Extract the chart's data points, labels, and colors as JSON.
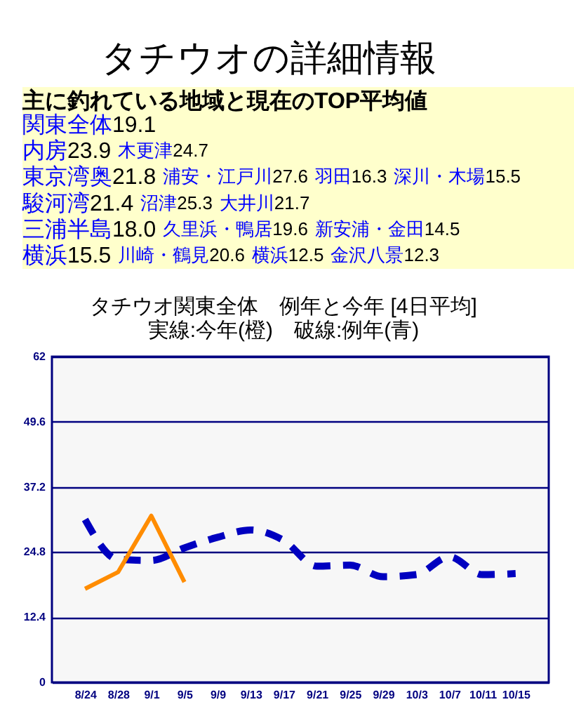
{
  "chart_data": [
    {
      "type": "other",
      "title": "タチウオの詳細情報",
      "subtitle": "主に釣れている地域と現在のTOP平均値",
      "categories": [
        "関東全体"
      ],
      "values": [
        19.1
      ],
      "data_labels": true
    },
    {
      "type": "other",
      "categories": [
        "内房",
        "木更津"
      ],
      "values": [
        23.9,
        24.7
      ],
      "data_labels": true
    },
    {
      "type": "other",
      "categories": [
        "東京湾奥",
        "浦安・江戸川",
        "羽田",
        "深川・木場"
      ],
      "values": [
        21.8,
        27.6,
        16.3,
        15.5
      ],
      "data_labels": true
    },
    {
      "type": "other",
      "categories": [
        "駿河湾",
        "沼津",
        "大井川"
      ],
      "values": [
        21.4,
        25.3,
        21.7
      ],
      "data_labels": true
    },
    {
      "type": "other",
      "categories": [
        "三浦半島",
        "久里浜・鴨居",
        "新安浦・金田"
      ],
      "values": [
        18,
        19.6,
        14.5
      ],
      "value_labels": [
        "18.0",
        "19.6",
        "14.5"
      ]
    },
    {
      "type": "other",
      "categories": [
        "横浜",
        "川崎・鶴見",
        "横浜",
        "金沢八景"
      ],
      "values": [
        15.5,
        20.6,
        12.5,
        12.3
      ],
      "data_labels": true
    },
    {
      "type": "line",
      "title": "タチウオ関東全体　例年と今年 [4日平均]",
      "subtitle": "実線:今年(橙)　破線:例年(青)",
      "categories": [
        "8/24",
        "8/28",
        "9/1",
        "9/5",
        "9/9",
        "9/13",
        "9/17",
        "9/21",
        "9/25",
        "9/29",
        "10/3",
        "10/7",
        "10/11",
        "10/15"
      ],
      "ylim": [
        0,
        62
      ],
      "yticks": [
        0,
        12.4,
        24.8,
        37.2,
        49.6,
        62
      ],
      "grid": "y",
      "series": [
        {
          "color": "#0000c0",
          "line_style": "dashed",
          "values": [
            31.0,
            23.4,
            23.2,
            25.6,
            27.6,
            29.0,
            27.0,
            22.1,
            22.3,
            20.1,
            20.5,
            23.9,
            20.5,
            20.7
          ]
        },
        {
          "color": "#ff8c00",
          "line_style": "solid",
          "values": [
            17.8,
            21.0,
            31.7,
            19.1,
            null,
            null,
            null,
            null,
            null,
            null,
            null,
            null,
            null,
            null
          ]
        }
      ]
    }
  ]
}
